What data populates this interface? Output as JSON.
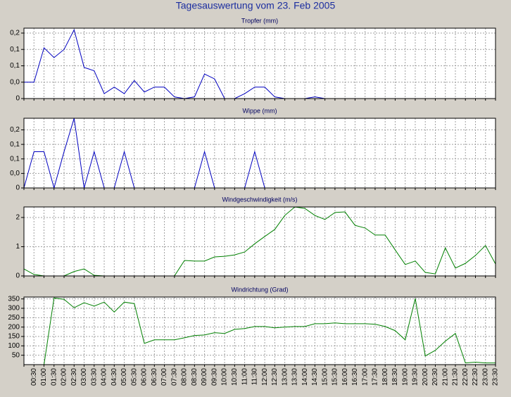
{
  "title": "Tagesauswertung vom 23. Feb 2005",
  "chart_data": [
    {
      "type": "line",
      "title": "Tropfer (mm)",
      "color": "#0000c0",
      "grid": true,
      "ylim": [
        0,
        0.215
      ],
      "yticks": [
        0,
        {
          "value": 0.05,
          "label": "0,0"
        },
        {
          "value": 0.1,
          "label": "0,1"
        },
        {
          "value": 0.15,
          "label": "0,1"
        },
        {
          "value": 0.2,
          "label": "0,2"
        }
      ],
      "values": [
        0.05,
        0.05,
        0.155,
        0.125,
        0.15,
        0.21,
        0.095,
        0.085,
        0.015,
        0.035,
        0.015,
        0.055,
        0.02,
        0.035,
        0.035,
        0.005,
        0,
        0.005,
        0.075,
        0.06,
        0,
        0,
        0.015,
        0.035,
        0.035,
        0.005,
        0,
        0,
        0,
        0.005,
        0,
        0,
        0,
        0,
        0,
        0,
        0,
        0,
        0,
        0,
        0,
        0,
        0,
        0,
        0,
        0,
        0,
        0
      ]
    },
    {
      "type": "line",
      "title": "Wippe (mm)",
      "color": "#0000c0",
      "grid": true,
      "ylim": [
        0,
        0.24
      ],
      "yticks": [
        0,
        {
          "value": 0.05,
          "label": "0,0"
        },
        {
          "value": 0.1,
          "label": "0,1"
        },
        {
          "value": 0.15,
          "label": "0,1"
        },
        {
          "value": 0.2,
          "label": "0,2"
        }
      ],
      "values": [
        0,
        0.125,
        0.125,
        0,
        0.125,
        0.24,
        0,
        0.125,
        0,
        0,
        0.125,
        0,
        0,
        0,
        0,
        0,
        0,
        0,
        0.125,
        0,
        0,
        0,
        0,
        0.125,
        0,
        0,
        0,
        0,
        0,
        0,
        0,
        0,
        0,
        0,
        0,
        0,
        0,
        0,
        0,
        0,
        0,
        0,
        0,
        0,
        0,
        0,
        0,
        0
      ]
    },
    {
      "type": "line",
      "title": "Windgeschwindigkeit (m/s)",
      "color": "#008000",
      "grid": true,
      "ylim": [
        0,
        2.36
      ],
      "yticks": [
        0,
        1,
        2
      ],
      "values": [
        0.24,
        0.05,
        0,
        0,
        0,
        0.15,
        0.24,
        0.02,
        0,
        0,
        0,
        0,
        0,
        0,
        0,
        0,
        0.53,
        0.51,
        0.51,
        0.65,
        0.67,
        0.72,
        0.82,
        1.1,
        1.35,
        1.59,
        2.07,
        2.36,
        2.31,
        2.07,
        1.93,
        2.17,
        2.19,
        1.73,
        1.64,
        1.4,
        1.4,
        0.89,
        0.39,
        0.51,
        0.12,
        0.07,
        0.96,
        0.27,
        0.43,
        0.7,
        1.04,
        0.41
      ]
    },
    {
      "type": "line",
      "title": "Windrichtung (Grad)",
      "color": "#008000",
      "grid": true,
      "ylim": [
        0,
        360
      ],
      "yticks": [
        50,
        100,
        150,
        200,
        250,
        300,
        350
      ],
      "categories": [
        null,
        "00:30",
        "01:00",
        "01:30",
        "02:00",
        "02:30",
        "03:00",
        "03:30",
        "04:00",
        "04:30",
        "05:00",
        "05:30",
        "06:00",
        "06:30",
        "07:00",
        "07:30",
        "08:00",
        "08:30",
        "09:00",
        "09:30",
        "10:00",
        "10:30",
        "11:00",
        "11:30",
        "12:00",
        "12:30",
        "13:00",
        "13:30",
        "14:00",
        "14:30",
        "15:00",
        "15:30",
        "16:00",
        "16:30",
        "17:00",
        "17:30",
        "18:00",
        "18:30",
        "19:00",
        "19:30",
        "20:00",
        "20:30",
        "21:00",
        "21:30",
        "22:00",
        "22:30",
        "23:00",
        "23:30"
      ],
      "values": [
        0,
        0,
        0,
        355,
        348,
        303,
        330,
        312,
        333,
        280,
        333,
        325,
        113,
        132,
        132,
        132,
        143,
        155,
        158,
        170,
        166,
        188,
        192,
        203,
        203,
        196,
        200,
        203,
        203,
        218,
        218,
        222,
        218,
        218,
        218,
        215,
        203,
        181,
        132,
        352,
        46,
        76,
        125,
        166,
        9,
        13,
        9,
        9
      ]
    }
  ]
}
